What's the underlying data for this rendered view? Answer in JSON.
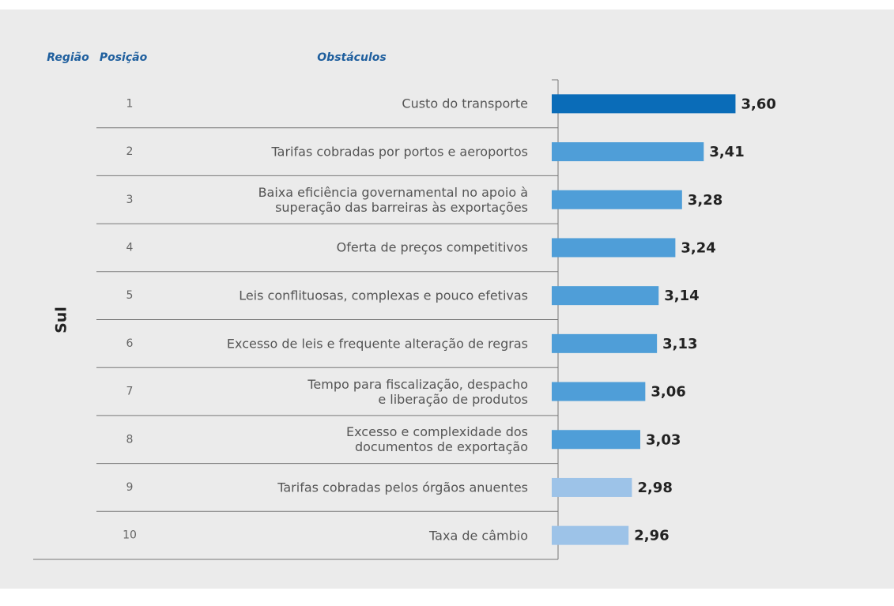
{
  "chart_data": {
    "type": "bar",
    "orientation": "horizontal",
    "headers": {
      "region": "Região",
      "position": "Posição",
      "obstacles": "Obstáculos"
    },
    "region": "Sul",
    "positions": [
      1,
      2,
      3,
      4,
      5,
      6,
      7,
      8,
      9,
      10
    ],
    "categories": [
      "Custo do transporte",
      "Tarifas cobradas por portos e aeroportos",
      "Baixa eficiência governamental no apoio à\nsuperação das barreiras às exportações",
      "Oferta de preços competitivos",
      "Leis conflituosas, complexas e pouco efetivas",
      "Excesso de leis e frequente alteração de regras",
      "Tempo para fiscalização, despacho\ne liberação de produtos",
      "Excesso e complexidade dos\ndocumentos de exportação",
      "Tarifas cobradas pelos órgãos anuentes",
      "Taxa de câmbio"
    ],
    "values": [
      3.6,
      3.41,
      3.28,
      3.24,
      3.14,
      3.13,
      3.06,
      3.03,
      2.98,
      2.96
    ],
    "value_labels": [
      "3,60",
      "3,41",
      "3,28",
      "3,24",
      "3,14",
      "3,13",
      "3,06",
      "3,03",
      "2,98",
      "2,96"
    ],
    "colors": [
      "#0a6cb8",
      "#4f9ed8",
      "#4f9ed8",
      "#4f9ed8",
      "#4f9ed8",
      "#4f9ed8",
      "#4f9ed8",
      "#4f9ed8",
      "#9dc3e8",
      "#9dc3e8"
    ],
    "xlim": [
      2.5,
      4.0
    ]
  }
}
